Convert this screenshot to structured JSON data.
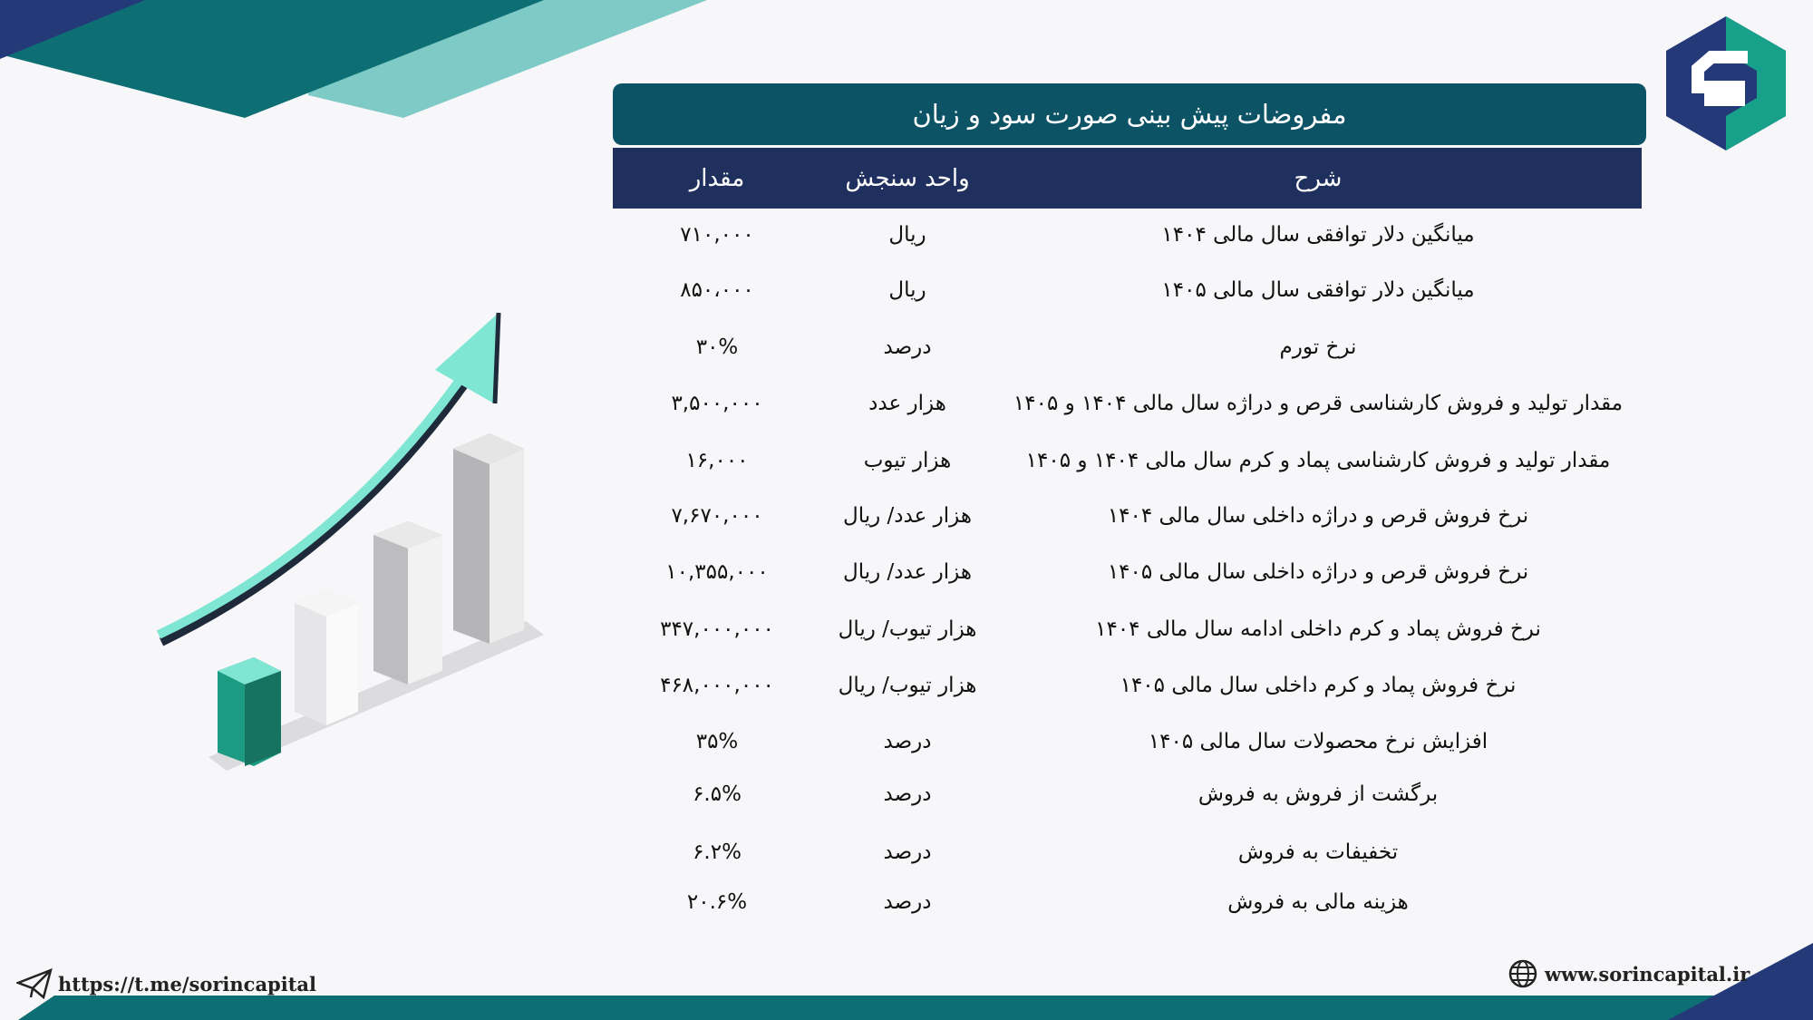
{
  "title": "مفروضات پیش بینی صورت سود و زیان",
  "table": {
    "headers": {
      "description": "شرح",
      "unit": "واحد سنجش",
      "value": "مقدار"
    },
    "rows": [
      {
        "description": "میانگین دلار توافقی سال مالی ۱۴۰۴",
        "unit": "ریال",
        "value": "۷۱۰,۰۰۰"
      },
      {
        "description": "میانگین دلار توافقی سال مالی ۱۴۰۵",
        "unit": "ریال",
        "value": "۸۵۰،۰۰۰"
      },
      {
        "description": "نرخ تورم",
        "unit": "درصد",
        "value": "۳۰%"
      },
      {
        "description": "مقدار تولید و فروش کارشناسی قرص و دراژه سال مالی ۱۴۰۴ و ۱۴۰۵",
        "unit": "هزار عدد",
        "value": "۳,۵۰۰,۰۰۰"
      },
      {
        "description": "مقدار تولید و فروش کارشناسی پماد و کرم سال مالی ۱۴۰۴ و ۱۴۰۵",
        "unit": "هزار تیوب",
        "value": "۱۶,۰۰۰"
      },
      {
        "description": "نرخ فروش قرص و دراژه داخلی سال مالی ۱۴۰۴",
        "unit": "هزار عدد/ ریال",
        "value": "۷,۶۷۰,۰۰۰"
      },
      {
        "description": "نرخ فروش قرص و دراژه داخلی سال مالی ۱۴۰۵",
        "unit": "هزار عدد/ ریال",
        "value": "۱۰,۳۵۵,۰۰۰"
      },
      {
        "description": "نرخ فروش پماد و کرم داخلی ادامه سال مالی ۱۴۰۴",
        "unit": "هزار تیوب/ ریال",
        "value": "۳۴۷,۰۰۰,۰۰۰"
      },
      {
        "description": "نرخ فروش پماد و کرم داخلی سال مالی ۱۴۰۵",
        "unit": "هزار تیوب/ ریال",
        "value": "۴۶۸,۰۰۰,۰۰۰"
      },
      {
        "description": "افزایش نرخ محصولات سال مالی ۱۴۰۵",
        "unit": "درصد",
        "value": "۳۵%"
      },
      {
        "description": "برگشت از فروش به فروش",
        "unit": "درصد",
        "value": "۶.۵%"
      },
      {
        "description": "تخفیفات به فروش",
        "unit": "درصد",
        "value": "۶.۲%"
      },
      {
        "description": "هزینه مالی به فروش",
        "unit": "درصد",
        "value": "۲۰.۶%"
      }
    ]
  },
  "footer": {
    "telegram": "https://t.me/sorincapital",
    "website": "www.sorincapital.ir",
    "telegram_icon": "paper-plane-icon",
    "website_icon": "globe-icon"
  },
  "colors": {
    "title_bg": "#0d5366",
    "header_bg": "#1f2f5e",
    "teal": "#7fe6d4",
    "navy": "#243a78"
  }
}
